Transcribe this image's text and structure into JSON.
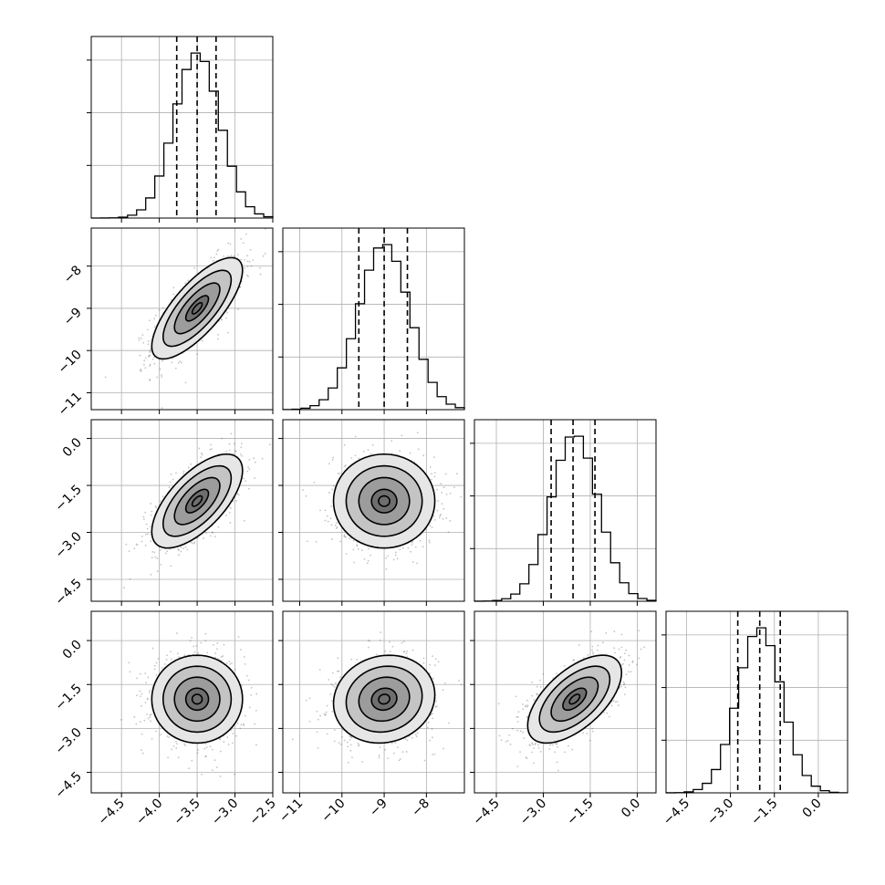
{
  "chart_data": {
    "type": "corner",
    "title": "",
    "parameters": [
      {
        "mean": -3.5,
        "std": 0.3,
        "range": [
          -4.9,
          -2.5
        ],
        "ticks": [
          -4.5,
          -4.0,
          -3.5,
          -3.0,
          -2.5
        ],
        "tick_labels": [
          "−4.5",
          "−4.0",
          "−3.5",
          "−3.0",
          "−2.5"
        ],
        "quantiles": [
          -3.77,
          -3.5,
          -3.25
        ]
      },
      {
        "mean": -9.0,
        "std": 0.6,
        "range": [
          -11.4,
          -7.1
        ],
        "ticks": [
          -11,
          -10,
          -9,
          -8
        ],
        "tick_labels": [
          "−11",
          "−10",
          "−9",
          "−8"
        ],
        "quantiles": [
          -9.6,
          -9.0,
          -8.45
        ]
      },
      {
        "mean": -2.0,
        "std": 0.75,
        "range": [
          -5.2,
          0.6
        ],
        "ticks": [
          -4.5,
          -3.0,
          -1.5,
          0.0
        ],
        "tick_labels": [
          "−4.5",
          "−3.0",
          "−1.5",
          "0.0"
        ],
        "quantiles": [
          -2.75,
          -2.05,
          -1.35
        ]
      },
      {
        "mean": -2.0,
        "std": 0.75,
        "range": [
          -5.2,
          1.0
        ],
        "ticks": [
          -4.5,
          -3.0,
          -1.5,
          0.0
        ],
        "tick_labels": [
          "−4.5",
          "−3.0",
          "−1.5",
          "0.0"
        ],
        "quantiles": [
          -2.75,
          -2.0,
          -1.3
        ]
      }
    ],
    "correlations": {
      "1-0": 0.75,
      "2-0": 0.65,
      "2-1": 0.0,
      "3-0": 0.0,
      "3-1": 0.1,
      "3-2": 0.6
    },
    "histogram_bins": 20,
    "contour_levels_sigma": [
      0.5,
      1.0,
      1.5,
      2.0
    ],
    "grid": true,
    "colors": {
      "lines": "#000000",
      "grid": "#b0b0b0",
      "samples": "#555555"
    }
  }
}
